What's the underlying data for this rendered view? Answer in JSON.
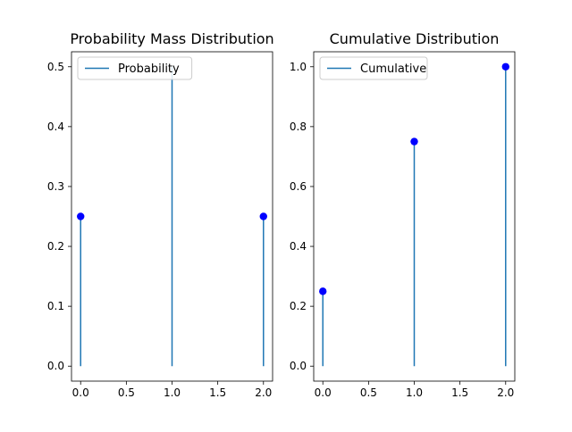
{
  "chart_data": [
    {
      "type": "stem",
      "title": "Probability Mass Distribution",
      "x": [
        0,
        1,
        2
      ],
      "values": [
        0.25,
        0.5,
        0.25
      ],
      "marker_visible": [
        true,
        false,
        true
      ],
      "xlim": [
        -0.1,
        2.1
      ],
      "ylim": [
        -0.025,
        0.525
      ],
      "xticks": [
        "0.0",
        "0.5",
        "1.0",
        "1.5",
        "2.0"
      ],
      "yticks": [
        "0.0",
        "0.1",
        "0.2",
        "0.3",
        "0.4",
        "0.5"
      ],
      "legend": {
        "label": "Probability",
        "position": "upper left"
      },
      "stem_color": "#1f77b4",
      "marker_color": "#0000ff",
      "grid": false
    },
    {
      "type": "stem",
      "title": "Cumulative Distribution",
      "x": [
        0,
        1,
        2
      ],
      "values": [
        0.25,
        0.75,
        1.0
      ],
      "marker_visible": [
        true,
        true,
        true
      ],
      "xlim": [
        -0.1,
        2.1
      ],
      "ylim": [
        -0.05,
        1.05
      ],
      "xticks": [
        "0.0",
        "0.5",
        "1.0",
        "1.5",
        "2.0"
      ],
      "yticks": [
        "0.0",
        "0.2",
        "0.4",
        "0.6",
        "0.8",
        "1.0"
      ],
      "legend": {
        "label": "Cumulative",
        "position": "upper left"
      },
      "stem_color": "#1f77b4",
      "marker_color": "#0000ff",
      "grid": false
    }
  ]
}
